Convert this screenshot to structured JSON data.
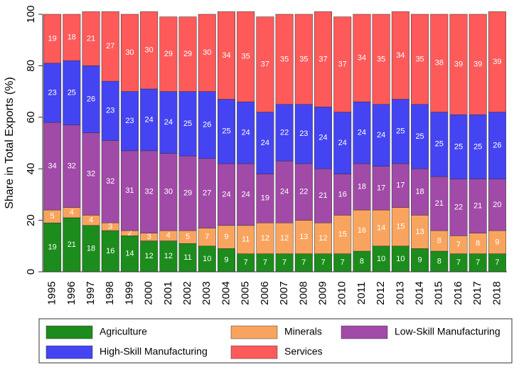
{
  "chart_data": {
    "type": "stacked-bar",
    "y_label": "Share in Total Exports (%)",
    "categories": [
      "1995",
      "1996",
      "1997",
      "1998",
      "1999",
      "2000",
      "2001",
      "2002",
      "2003",
      "2004",
      "2005",
      "2006",
      "2007",
      "2008",
      "2009",
      "2010",
      "2011",
      "2012",
      "2013",
      "2014",
      "2015",
      "2016",
      "2017",
      "2018"
    ],
    "series": [
      {
        "name": "Agriculture",
        "color": "#1c8c1c",
        "values": [
          19,
          21,
          18,
          16,
          14,
          12,
          12,
          11,
          10,
          9,
          7,
          7,
          7,
          7,
          7,
          7,
          8,
          10,
          10,
          9,
          8,
          7,
          7,
          7
        ]
      },
      {
        "name": "Minerals",
        "color": "#f9a45e",
        "values": [
          5,
          4,
          4,
          3,
          2,
          3,
          4,
          5,
          7,
          9,
          11,
          12,
          12,
          13,
          12,
          15,
          16,
          14,
          15,
          13,
          8,
          7,
          8,
          9
        ]
      },
      {
        "name": "Low-Skill Manufacturing",
        "color": "#a24aa8",
        "values": [
          34,
          32,
          32,
          32,
          31,
          32,
          30,
          29,
          27,
          24,
          24,
          19,
          24,
          22,
          21,
          16,
          18,
          17,
          17,
          18,
          21,
          22,
          21,
          20
        ]
      },
      {
        "name": "High-Skill Manufacturing",
        "color": "#4444f2",
        "values": [
          23,
          25,
          26,
          23,
          23,
          24,
          24,
          25,
          26,
          25,
          24,
          24,
          22,
          23,
          24,
          24,
          24,
          24,
          25,
          25,
          25,
          25,
          25,
          26
        ]
      },
      {
        "name": "Services",
        "color": "#fe5a5a",
        "values": [
          19,
          18,
          21,
          27,
          30,
          30,
          29,
          29,
          30,
          34,
          35,
          37,
          35,
          35,
          37,
          37,
          34,
          35,
          34,
          35,
          38,
          39,
          39,
          39
        ]
      }
    ],
    "ylim": [
      0,
      100
    ],
    "yticks": [
      0,
      20,
      40,
      60,
      80,
      100
    ],
    "grid": false
  }
}
